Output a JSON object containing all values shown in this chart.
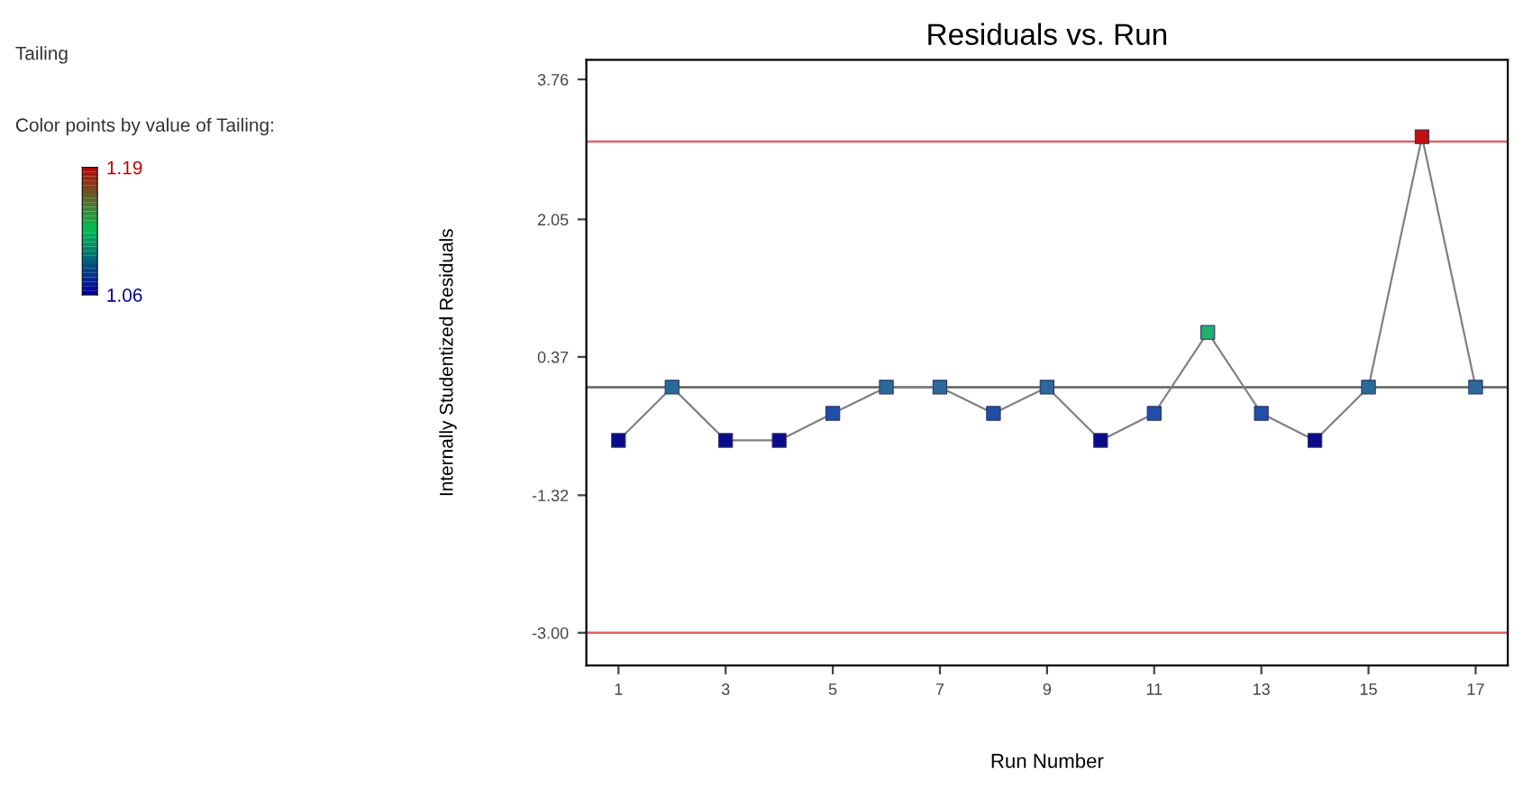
{
  "chart_data": {
    "type": "line",
    "title": "Residuals vs. Run",
    "subtitle": "Tailing",
    "xlabel": "Run Number",
    "ylabel": "Internally Studentized Residuals",
    "x": [
      1,
      2,
      3,
      4,
      5,
      6,
      7,
      8,
      9,
      10,
      11,
      12,
      13,
      14,
      15,
      16,
      17
    ],
    "series": [
      {
        "color": "#808080",
        "values": [
          -0.65,
          0,
          -0.65,
          -0.65,
          -0.32,
          0,
          0,
          -0.32,
          0,
          -0.65,
          -0.32,
          0.67,
          -0.32,
          -0.65,
          0,
          3.06,
          0
        ],
        "colors": [
          "#0a0a8c",
          "#2a6a9a",
          "#0a0a8c",
          "#0a0a8c",
          "#1f4fa8",
          "#2a6a9a",
          "#2a6a9a",
          "#1f4fa8",
          "#2a6a9a",
          "#0a0a8c",
          "#1f4fa8",
          "#20b070",
          "#1f4fa8",
          "#0a0a8c",
          "#2a6a9a",
          "#c01010",
          "#2a6a9a"
        ]
      }
    ],
    "marker": "square",
    "line_style": "solid",
    "grid": false,
    "legend": false,
    "xlim": [
      0.4,
      17.6
    ],
    "xticks": [
      1,
      3,
      5,
      7,
      9,
      11,
      13,
      15,
      17
    ],
    "ylim": [
      -3.4,
      4.0
    ],
    "yticks": [
      {
        "value": -3.0,
        "label": "-3.00"
      },
      -1.32,
      0.37,
      2.05,
      3.76
    ],
    "ref_lines": [
      {
        "axis": "y",
        "value": 3.0,
        "color": "#e06060"
      },
      {
        "axis": "y",
        "value": -3.0,
        "color": "#e06060"
      },
      {
        "axis": "y",
        "value": 0,
        "color": "#606060"
      }
    ],
    "clabel": "Color points by value of Tailing:",
    "clim": [
      1.06,
      1.19
    ],
    "cticks": [
      1.06,
      1.19
    ]
  }
}
